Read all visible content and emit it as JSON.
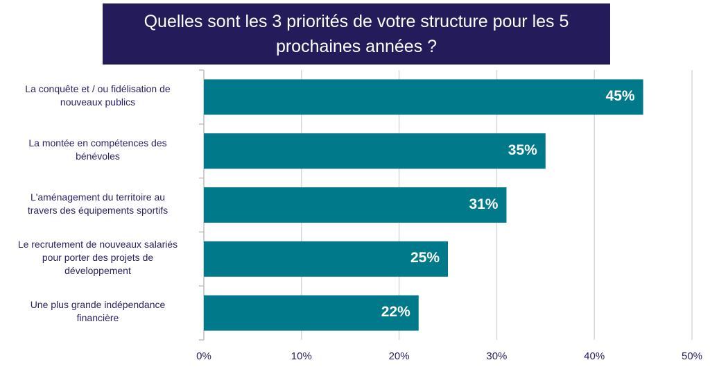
{
  "chart_data": {
    "type": "bar",
    "orientation": "horizontal",
    "title_lines": [
      "Quelles sont les 3 priorités de votre structure pour les 5",
      "prochaines années ?"
    ],
    "categories": [
      [
        "La conquête et / ou fidélisation de",
        "nouveaux publics"
      ],
      [
        "La montée en compétences des",
        "bénévoles"
      ],
      [
        "L'aménagement du territoire au",
        "travers des équipements sportifs"
      ],
      [
        "Le recrutement de nouveaux salariés",
        "pour porter des projets de",
        "développement"
      ],
      [
        "Une plus grande indépendance",
        "financière"
      ]
    ],
    "values": [
      45,
      35,
      31,
      25,
      22
    ],
    "data_labels": [
      "45%",
      "35%",
      "31%",
      "25%",
      "22%"
    ],
    "xlim": [
      0,
      50
    ],
    "ticks": [
      "0%",
      "10%",
      "20%",
      "30%",
      "40%",
      "50%"
    ],
    "grid": true,
    "colors": {
      "bar": "#007a8a",
      "title_bg": "#241c5a",
      "text": "#2a2262",
      "grid": "#d9d9d9"
    }
  }
}
